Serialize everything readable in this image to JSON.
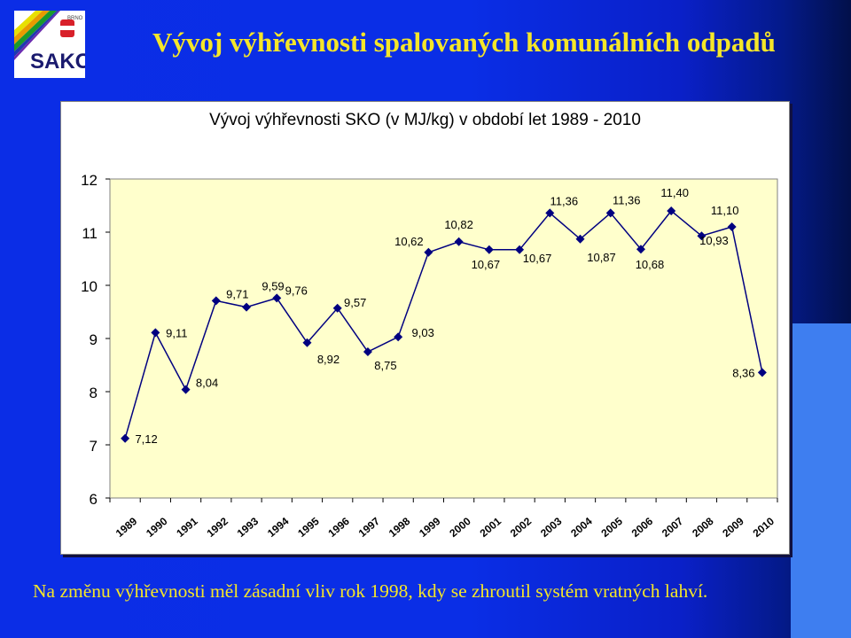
{
  "slide": {
    "title": "Vývoj výhřevnosti spalovaných komunálních odpadů",
    "footnote": "Na změnu výhřevnosti měl zásadní vliv rok 1998, kdy se zhroutil systém vratných lahví."
  },
  "logo": {
    "text": "SAKO",
    "subtext": "BRNO"
  },
  "colors": {
    "title_text": "#f5e629",
    "plot_background": "#ffffcc",
    "series_line": "#000080"
  },
  "chart_data": {
    "type": "line",
    "title": "Vývoj výhřevnosti SKO (v MJ/kg) v období let 1989 - 2010",
    "xlabel": "",
    "ylabel": "",
    "ylim": [
      6,
      12
    ],
    "yticks": [
      "6",
      "7",
      "8",
      "9",
      "10",
      "11",
      "12"
    ],
    "grid": false,
    "legend": "none",
    "x": [
      "1989",
      "1990",
      "1991",
      "1992",
      "1993",
      "1994",
      "1995",
      "1996",
      "1997",
      "1998",
      "1999",
      "2000",
      "2001",
      "2002",
      "2003",
      "2004",
      "2005",
      "2006",
      "2007",
      "2008",
      "2009",
      "2010"
    ],
    "values": [
      7.12,
      9.11,
      8.04,
      9.71,
      9.59,
      9.76,
      8.92,
      9.57,
      8.75,
      9.03,
      10.62,
      10.82,
      10.67,
      10.67,
      11.36,
      10.87,
      11.36,
      10.68,
      11.4,
      10.93,
      11.1,
      8.36
    ],
    "data_labels": [
      "7,12",
      "9,11",
      "8,04",
      "9,71",
      "9,59",
      "9,76",
      "8,92",
      "9,57",
      "8,75",
      "9,03",
      "10,62",
      "10,82",
      "10,67",
      "10,67",
      "11,36",
      "10,87",
      "11,36",
      "10,68",
      "11,40",
      "10,93",
      "11,10",
      "8,36"
    ]
  }
}
